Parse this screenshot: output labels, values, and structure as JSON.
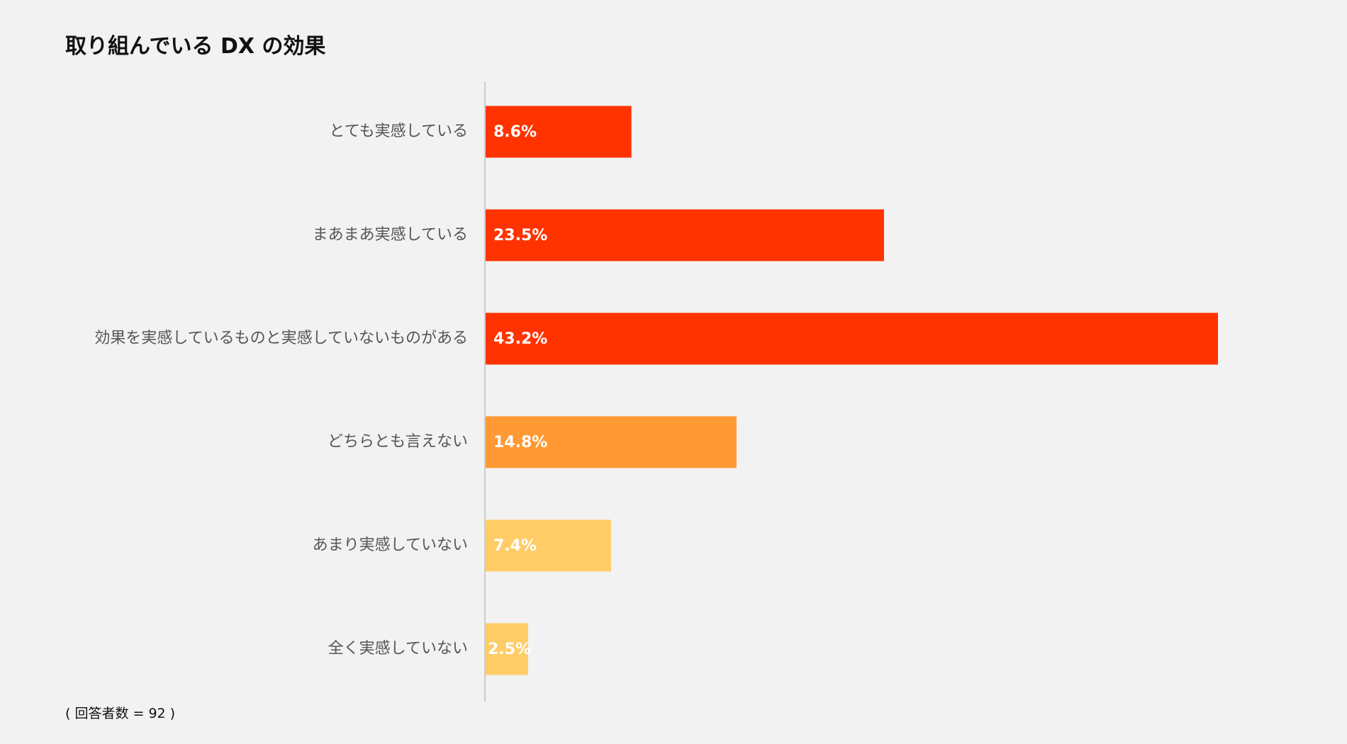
{
  "chart_data": {
    "type": "bar",
    "orientation": "horizontal",
    "title": "取り組んでいる DX の効果",
    "categories": [
      "とても実感している",
      "まあまあ実感している",
      "効果を実感しているものと実感していないものがある",
      "どちらとも言えない",
      "あまり実感していない",
      "全く実感していない"
    ],
    "values": [
      8.6,
      23.5,
      43.2,
      14.8,
      7.4,
      2.5
    ],
    "value_labels": [
      "8.6%",
      "23.5%",
      "43.2%",
      "14.8%",
      "7.4%",
      "2.5%"
    ],
    "unit": "%",
    "xlim": [
      0,
      43.2
    ],
    "grid": false,
    "legend": "none",
    "bar_colors": [
      "#ff3300",
      "#ff3300",
      "#ff3300",
      "#ff9933",
      "#ffcc66",
      "#ffcc66"
    ],
    "axis_color": "#cccccc",
    "footnote": "( 回答者数 = 92 )"
  }
}
